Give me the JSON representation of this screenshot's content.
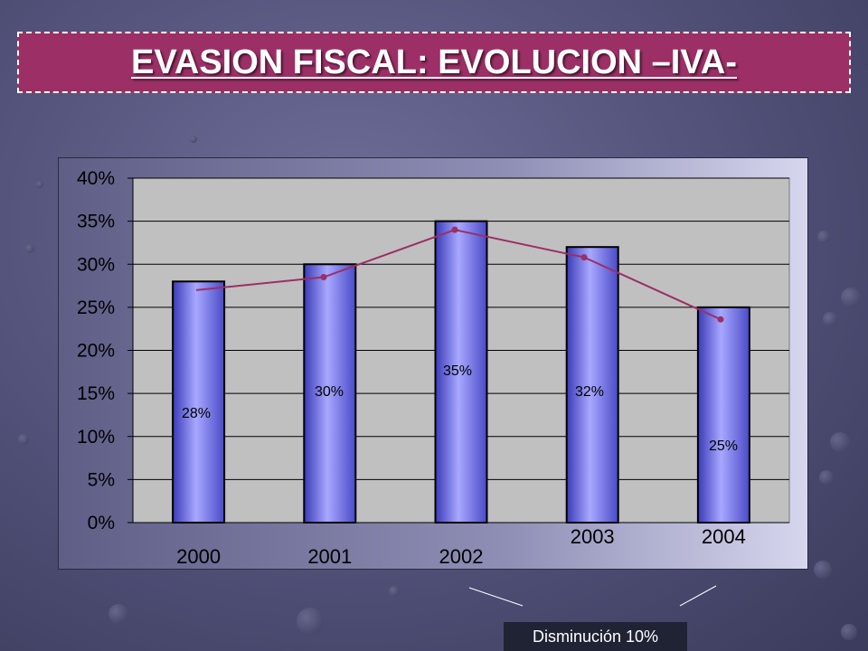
{
  "title": "EVASION FISCAL: EVOLUCION –IVA-",
  "note": "Disminución 10%",
  "colors": {
    "title_bg": "#9b2f66",
    "bar": "#9999ff",
    "line": "#9b2f66",
    "plot_bg": "#c0c0c0"
  },
  "chart_data": {
    "type": "bar",
    "categories": [
      "2000",
      "2001",
      "2002",
      "2003",
      "2004"
    ],
    "values": [
      28,
      30,
      35,
      32,
      25
    ],
    "data_labels": [
      "28%",
      "30%",
      "35%",
      "32%",
      "25%"
    ],
    "line_values": [
      27,
      28.5,
      34,
      30.8,
      23.6
    ],
    "ylim": [
      0,
      40
    ],
    "ytick_values": [
      0,
      5,
      10,
      15,
      20,
      25,
      30,
      35,
      40
    ],
    "ytick_labels": [
      "0%",
      "5%",
      "10%",
      "15%",
      "20%",
      "25%",
      "30%",
      "35%",
      "40%"
    ],
    "grid": true,
    "legend": "none",
    "xlabel": "",
    "ylabel": ""
  }
}
